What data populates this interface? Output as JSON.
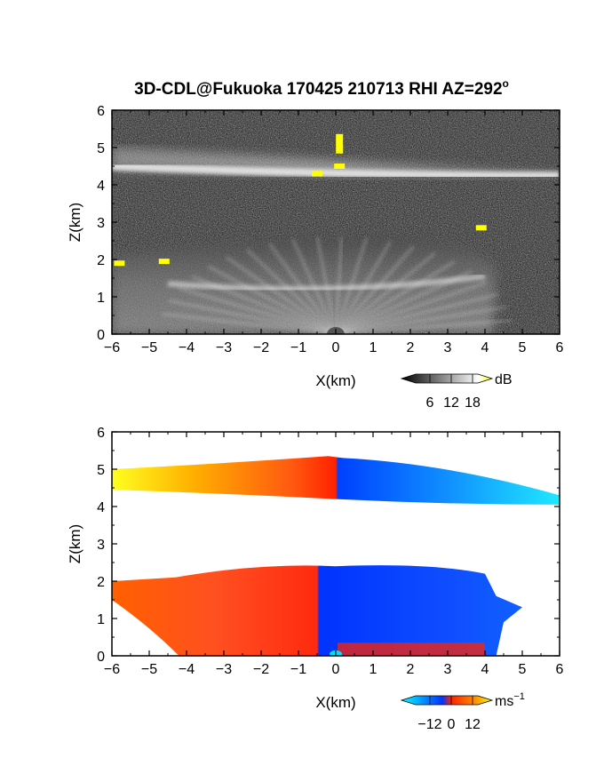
{
  "title": {
    "main": "3D-CDL@Fukuoka 170425 210713 RHI AZ=292",
    "degree_symbol": "o"
  },
  "chart_data": [
    {
      "type": "heatmap",
      "name": "reflectivity-panel",
      "xlabel": "X(km)",
      "ylabel": "Z(km)",
      "xlim": [
        -6,
        6
      ],
      "ylim": [
        0,
        6
      ],
      "x_ticks": [
        -6,
        -5,
        -4,
        -3,
        -2,
        -1,
        0,
        1,
        2,
        3,
        4,
        5,
        6
      ],
      "y_ticks": [
        0,
        1,
        2,
        3,
        4,
        5,
        6
      ],
      "colorbar": {
        "unit": "dB",
        "tick_labels": [
          "6",
          "12",
          "18"
        ],
        "colors": [
          "#000000",
          "#ffffff",
          "#ffff00"
        ]
      },
      "layers": [
        {
          "feature": "upper-layer",
          "x_range": [
            -6,
            6
          ],
          "z_top_left": 5.0,
          "z_top_right": 4.3,
          "z_base_left": 4.4,
          "z_base_right": 4.2
        },
        {
          "feature": "lower-layer",
          "x_range": [
            -6,
            4.3
          ],
          "z_top": 2.6,
          "z_base": 0.0
        },
        {
          "feature": "saturated-spots",
          "points": [
            [
              0.1,
              5.1
            ],
            [
              0.1,
              4.5
            ],
            [
              -0.5,
              4.3
            ],
            [
              -5.8,
              1.9
            ],
            [
              -4.6,
              1.95
            ],
            [
              3.9,
              2.85
            ]
          ]
        }
      ]
    },
    {
      "type": "heatmap",
      "name": "velocity-panel",
      "xlabel": "X(km)",
      "ylabel": "Z(km)",
      "xlim": [
        -6,
        6
      ],
      "ylim": [
        0,
        6
      ],
      "x_ticks": [
        -6,
        -5,
        -4,
        -3,
        -2,
        -1,
        0,
        1,
        2,
        3,
        4,
        5,
        6
      ],
      "y_ticks": [
        0,
        1,
        2,
        3,
        4,
        5,
        6
      ],
      "colorbar": {
        "unit": "ms",
        "unit_exponent": "−1",
        "tick_labels": [
          "−12",
          "0",
          "12"
        ],
        "colors": [
          "#00ffff",
          "#0033ff",
          "#ff2200",
          "#ff8800",
          "#ffff00"
        ]
      },
      "layers": [
        {
          "feature": "upper-layer",
          "x_range": [
            -6,
            6
          ],
          "z_top_left": 5.15,
          "z_top_right": 4.3,
          "z_base_left": 4.45,
          "z_base_right": 4.05
        },
        {
          "feature": "lower-layer",
          "x_range": [
            -6,
            5.0
          ],
          "z_top": 2.5,
          "z_base": 0.0
        }
      ]
    }
  ]
}
